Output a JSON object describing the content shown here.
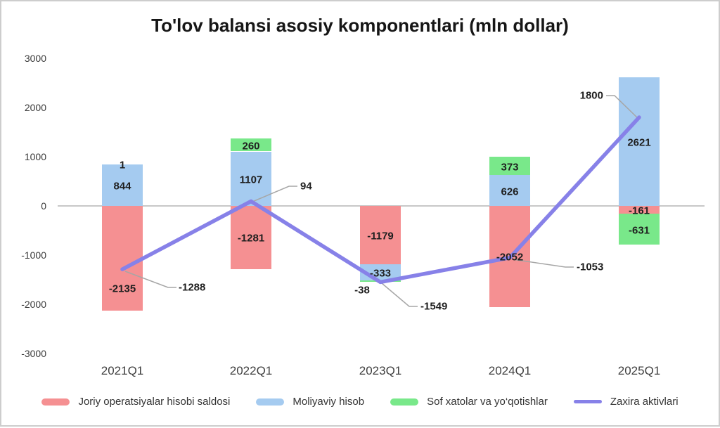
{
  "chart_data": {
    "type": "bar",
    "stacked": true,
    "title": "To'lov balansi asosiy komponentlari (mln dollar)",
    "categories": [
      "2021Q1",
      "2022Q1",
      "2023Q1",
      "2024Q1",
      "2025Q1"
    ],
    "series": [
      {
        "name": "Joriy operatsiyalar hisobi saldosi",
        "type": "bar",
        "color": "#f59092",
        "values": [
          -2135,
          -1281,
          -1179,
          -2052,
          -161
        ]
      },
      {
        "name": "Moliyaviy hisob",
        "type": "bar",
        "color": "#a5cbf0",
        "values": [
          844,
          1107,
          -333,
          626,
          2621
        ]
      },
      {
        "name": "Sof xatolar va yo‘qotishlar",
        "type": "bar",
        "color": "#79e88a",
        "values": [
          1,
          260,
          -38,
          373,
          -631
        ]
      },
      {
        "name": "Zaxira aktivlari",
        "type": "line",
        "color": "#8781e8",
        "values": [
          -1288,
          94,
          -1549,
          -1053,
          1800
        ]
      }
    ],
    "ylim": [
      -3000,
      3000
    ],
    "yticks": [
      3000,
      2000,
      1000,
      0,
      -1000,
      -2000,
      -3000
    ],
    "grid": "zero-line-only",
    "legend_position": "bottom",
    "colors": {
      "zero_line": "#c8c8c8",
      "leader_line": "#a6a6a6",
      "data_label": "#1f1f1f",
      "axis_text": "#3a3a3a",
      "frame_border": "#cdcdcd"
    }
  }
}
